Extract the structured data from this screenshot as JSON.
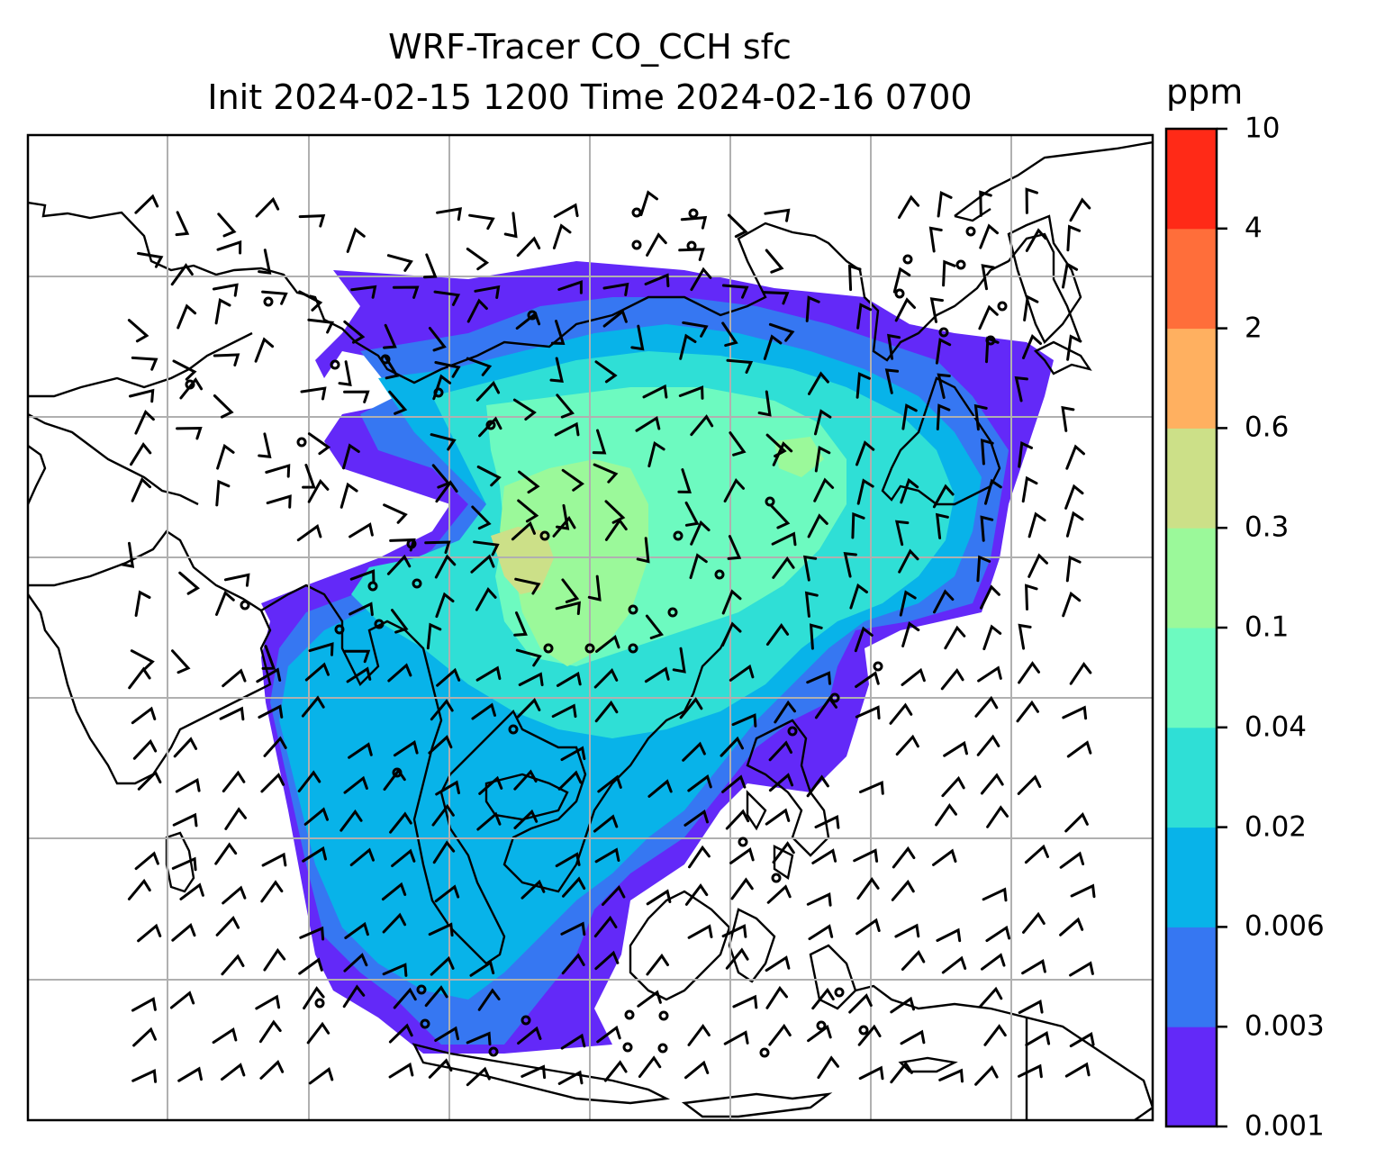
{
  "title_line1": "WRF-Tracer CO_CCH sfc",
  "title_line2": "Init 2024-02-15 1200 Time 2024-02-16 0700",
  "colorbar": {
    "unit": "ppm",
    "levels": [
      "0.001",
      "0.003",
      "0.006",
      "0.02",
      "0.04",
      "0.1",
      "0.3",
      "0.6",
      "2",
      "4",
      "10"
    ],
    "colors": [
      "#6329f8",
      "#3677f2",
      "#08b3e9",
      "#2fdfd6",
      "#6dfac0",
      "#9bf99a",
      "#cce088",
      "#ffb060",
      "#ff6e3a",
      "#ff2a17"
    ]
  },
  "map": {
    "gridlines": true,
    "field_colors": {
      "lowest": "#6329f8",
      "low": "#3677f2",
      "mid": "#08b3e9",
      "midhigh": "#2fdfd6",
      "high": "#6dfac0",
      "higher": "#9bf99a",
      "peak": "#cce088"
    },
    "wind_barbs": "black"
  }
}
